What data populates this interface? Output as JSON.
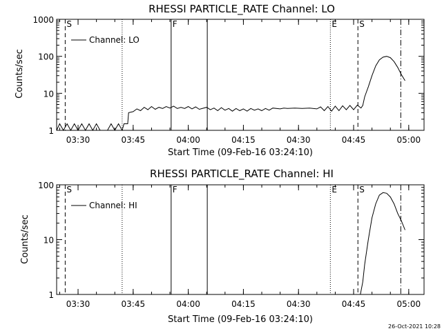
{
  "footer_timestamp": "26-Oct-2021 10:28",
  "chart_data": [
    {
      "type": "line",
      "title": "RHESSI PARTICLE_RATE Channel: LO",
      "xlabel": "Start Time (09-Feb-16 03:24:10)",
      "ylabel": "Counts/sec",
      "yscale": "log",
      "xlim": [
        "03:24:10",
        "05:04:10"
      ],
      "ylim": [
        1,
        1000
      ],
      "x_ticks": [
        "03:30",
        "03:45",
        "04:00",
        "04:15",
        "04:30",
        "04:45",
        "05:00"
      ],
      "y_ticks": [
        "1",
        "10",
        "100",
        "1000"
      ],
      "legend": "top-left",
      "series": [
        {
          "name": "Channel: LO",
          "points": [
            [
              "03:24:10",
              1.0
            ],
            [
              "03:25:00",
              1.5
            ],
            [
              "03:26:00",
              1.0
            ],
            [
              "03:27:00",
              1.5
            ],
            [
              "03:28:00",
              1.0
            ],
            [
              "03:29:00",
              1.5
            ],
            [
              "03:30:00",
              1.0
            ],
            [
              "03:31:00",
              1.5
            ],
            [
              "03:32:00",
              1.0
            ],
            [
              "03:33:00",
              1.5
            ],
            [
              "03:34:00",
              1.0
            ],
            [
              "03:35:00",
              1.5
            ],
            [
              "03:36:00",
              1.0
            ],
            [
              "03:38:00",
              1.0
            ],
            [
              "03:39:00",
              1.5
            ],
            [
              "03:40:00",
              1.0
            ],
            [
              "03:41:00",
              1.5
            ],
            [
              "03:42:00",
              1.0
            ],
            [
              "03:42:30",
              1.5
            ],
            [
              "03:43:30",
              1.5
            ],
            [
              "03:43:45",
              3.0
            ],
            [
              "03:45:00",
              3.2
            ],
            [
              "03:46:00",
              3.8
            ],
            [
              "03:47:00",
              3.4
            ],
            [
              "03:48:00",
              4.2
            ],
            [
              "03:49:00",
              3.6
            ],
            [
              "03:50:00",
              4.4
            ],
            [
              "03:51:00",
              3.7
            ],
            [
              "03:52:00",
              4.2
            ],
            [
              "03:53:00",
              3.9
            ],
            [
              "03:54:00",
              4.4
            ],
            [
              "03:55:00",
              4.0
            ],
            [
              "03:56:00",
              4.5
            ],
            [
              "03:57:00",
              3.9
            ],
            [
              "03:58:00",
              4.2
            ],
            [
              "03:59:00",
              3.9
            ],
            [
              "04:00:00",
              4.4
            ],
            [
              "04:01:00",
              3.8
            ],
            [
              "04:02:00",
              4.3
            ],
            [
              "04:03:00",
              3.7
            ],
            [
              "04:05:00",
              4.2
            ],
            [
              "04:06:00",
              3.6
            ],
            [
              "04:07:00",
              4.0
            ],
            [
              "04:08:00",
              3.4
            ],
            [
              "04:09:00",
              4.1
            ],
            [
              "04:10:00",
              3.5
            ],
            [
              "04:11:00",
              3.9
            ],
            [
              "04:12:00",
              3.3
            ],
            [
              "04:13:00",
              3.9
            ],
            [
              "04:14:00",
              3.4
            ],
            [
              "04:15:00",
              3.8
            ],
            [
              "04:16:00",
              3.3
            ],
            [
              "04:17:00",
              3.9
            ],
            [
              "04:18:00",
              3.5
            ],
            [
              "04:19:00",
              3.8
            ],
            [
              "04:20:00",
              3.4
            ],
            [
              "04:21:00",
              3.9
            ],
            [
              "04:22:00",
              3.5
            ],
            [
              "04:23:00",
              4.0
            ],
            [
              "04:25:00",
              3.8
            ],
            [
              "04:26:00",
              4.0
            ],
            [
              "04:27:00",
              3.9
            ],
            [
              "04:29:00",
              4.0
            ],
            [
              "04:31:00",
              3.9
            ],
            [
              "04:33:00",
              4.0
            ],
            [
              "04:35:00",
              3.8
            ],
            [
              "04:36:00",
              4.3
            ],
            [
              "04:37:00",
              3.4
            ],
            [
              "04:38:00",
              4.4
            ],
            [
              "04:39:00",
              3.3
            ],
            [
              "04:40:00",
              4.5
            ],
            [
              "04:41:00",
              3.4
            ],
            [
              "04:42:00",
              4.6
            ],
            [
              "04:43:00",
              3.6
            ],
            [
              "04:44:00",
              4.7
            ],
            [
              "04:45:00",
              3.6
            ],
            [
              "04:46:00",
              4.8
            ],
            [
              "04:47:00",
              4.0
            ],
            [
              "04:47:30",
              4.7
            ],
            [
              "04:48:00",
              8.0
            ],
            [
              "04:49:00",
              15.0
            ],
            [
              "04:50:00",
              30.0
            ],
            [
              "04:51:00",
              55.0
            ],
            [
              "04:52:00",
              80.0
            ],
            [
              "04:53:00",
              95.0
            ],
            [
              "04:54:00",
              100.0
            ],
            [
              "04:55:00",
              92.0
            ],
            [
              "04:56:00",
              72.0
            ],
            [
              "04:57:00",
              50.0
            ],
            [
              "04:58:00",
              32.0
            ],
            [
              "04:59:00",
              22.0
            ]
          ]
        }
      ],
      "markers": [
        {
          "type": "dashed",
          "time": "03:26:30",
          "label": "S"
        },
        {
          "type": "dotted",
          "time": "03:42:00",
          "label": ""
        },
        {
          "type": "solid",
          "time": "03:55:20",
          "label": "F"
        },
        {
          "type": "solid",
          "time": "04:05:10",
          "label": ""
        },
        {
          "type": "dotted",
          "time": "04:38:40",
          "label": "E"
        },
        {
          "type": "dashed",
          "time": "04:46:10",
          "label": "S"
        },
        {
          "type": "dashdot",
          "time": "04:57:50",
          "label": ""
        }
      ]
    },
    {
      "type": "line",
      "title": "RHESSI PARTICLE_RATE Channel: HI",
      "xlabel": "Start Time (09-Feb-16 03:24:10)",
      "ylabel": "Counts/sec",
      "yscale": "log",
      "xlim": [
        "03:24:10",
        "05:04:10"
      ],
      "ylim": [
        1,
        100
      ],
      "x_ticks": [
        "03:30",
        "03:45",
        "04:00",
        "04:15",
        "04:30",
        "04:45",
        "05:00"
      ],
      "y_ticks": [
        "1",
        "10",
        "100"
      ],
      "legend": "top-left",
      "series": [
        {
          "name": "Channel: HI",
          "points": [
            [
              "04:46:50",
              1.0
            ],
            [
              "04:47:30",
              1.7
            ],
            [
              "04:48:00",
              3.5
            ],
            [
              "04:49:00",
              10.0
            ],
            [
              "04:50:00",
              25.0
            ],
            [
              "04:51:00",
              45.0
            ],
            [
              "04:52:00",
              65.0
            ],
            [
              "04:53:00",
              72.0
            ],
            [
              "04:54:00",
              70.0
            ],
            [
              "04:55:00",
              60.0
            ],
            [
              "04:56:00",
              45.0
            ],
            [
              "04:57:00",
              30.0
            ],
            [
              "04:58:00",
              22.0
            ],
            [
              "04:59:00",
              15.0
            ]
          ]
        }
      ],
      "markers": [
        {
          "type": "dashed",
          "time": "03:26:30",
          "label": "S"
        },
        {
          "type": "dotted",
          "time": "03:42:00",
          "label": ""
        },
        {
          "type": "solid",
          "time": "03:55:20",
          "label": "F"
        },
        {
          "type": "solid",
          "time": "04:05:10",
          "label": ""
        },
        {
          "type": "dotted",
          "time": "04:38:40",
          "label": "E"
        },
        {
          "type": "dashed",
          "time": "04:46:10",
          "label": "S"
        },
        {
          "type": "dashdot",
          "time": "04:57:50",
          "label": ""
        }
      ]
    }
  ]
}
